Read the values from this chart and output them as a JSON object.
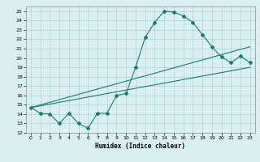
{
  "title": "",
  "xlabel": "Humidex (Indice chaleur)",
  "bg_color": "#daf0f0",
  "grid_color": "#aad4d4",
  "line_color": "#1a7a6e",
  "xlim": [
    -0.5,
    23.5
  ],
  "ylim": [
    12,
    25.5
  ],
  "xticks": [
    0,
    1,
    2,
    3,
    4,
    5,
    6,
    7,
    8,
    9,
    10,
    11,
    12,
    13,
    14,
    15,
    16,
    17,
    18,
    19,
    20,
    21,
    22,
    23
  ],
  "yticks": [
    12,
    13,
    14,
    15,
    16,
    17,
    18,
    19,
    20,
    21,
    22,
    23,
    24,
    25
  ],
  "curve1_x": [
    0,
    1,
    2,
    3,
    4,
    5,
    6,
    7,
    8,
    9,
    10,
    11,
    12,
    13,
    14,
    15,
    16,
    17,
    18,
    19,
    20,
    21,
    22,
    23
  ],
  "curve1_y": [
    14.7,
    14.1,
    14.0,
    13.0,
    14.1,
    13.0,
    12.5,
    14.1,
    14.1,
    16.0,
    16.2,
    19.0,
    22.2,
    23.8,
    25.0,
    24.9,
    24.5,
    23.8,
    22.5,
    21.2,
    20.1,
    19.5,
    20.2,
    19.5
  ],
  "line2_x": [
    0,
    23
  ],
  "line2_y": [
    14.7,
    21.2
  ],
  "line3_x": [
    0,
    23
  ],
  "line3_y": [
    14.7,
    19.0
  ],
  "tick_fontsize": 4.5,
  "xlabel_fontsize": 5.5
}
